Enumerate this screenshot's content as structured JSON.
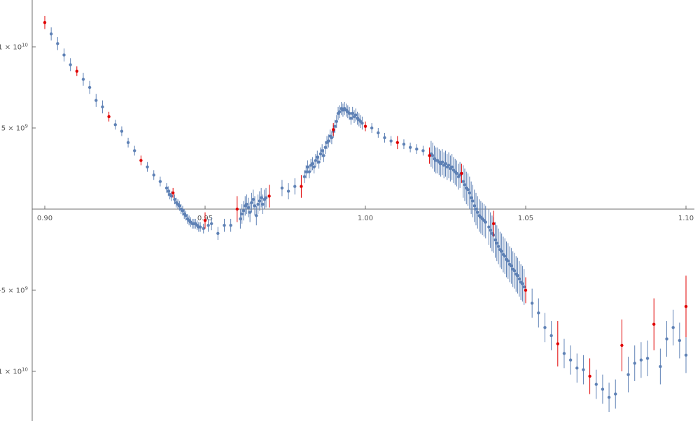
{
  "chart_data": {
    "type": "scatter",
    "title": "",
    "xlabel": "",
    "ylabel": "",
    "xlim": [
      0.9,
      1.1
    ],
    "ylim": [
      -13000000000.0,
      13000000000.0
    ],
    "grid": false,
    "x_ticks": [
      {
        "value": 0.9,
        "label": "0.90"
      },
      {
        "value": 0.95,
        "label": "0.95"
      },
      {
        "value": 1.0,
        "label": "1.00"
      },
      {
        "value": 1.05,
        "label": "1.05"
      },
      {
        "value": 1.1,
        "label": "1.10"
      }
    ],
    "y_ticks": [
      {
        "value": 10000000000.0,
        "label": "1 × 10",
        "exp": "10"
      },
      {
        "value": 5000000000.0,
        "label": "5 × 10",
        "exp": "9"
      },
      {
        "value": -5000000000.0,
        "label": "−5 × 10",
        "exp": "9"
      },
      {
        "value": -10000000000.0,
        "label": "−1 × 10",
        "exp": "10"
      }
    ],
    "colors": {
      "main": "#5e81b5",
      "highlight": "#e00000"
    },
    "series": [
      {
        "key": "main",
        "color": "#5e81b5",
        "points": [
          [
            0.902,
            10.8,
            0.4
          ],
          [
            0.904,
            10.2,
            0.4
          ],
          [
            0.906,
            9.5,
            0.4
          ],
          [
            0.908,
            8.9,
            0.4
          ],
          [
            0.912,
            8.0,
            0.4
          ],
          [
            0.914,
            7.5,
            0.4
          ],
          [
            0.916,
            6.7,
            0.4
          ],
          [
            0.918,
            6.3,
            0.4
          ],
          [
            0.922,
            5.2,
            0.3
          ],
          [
            0.924,
            4.8,
            0.3
          ],
          [
            0.926,
            4.1,
            0.3
          ],
          [
            0.928,
            3.6,
            0.3
          ],
          [
            0.932,
            2.6,
            0.3
          ],
          [
            0.934,
            2.1,
            0.3
          ],
          [
            0.936,
            1.7,
            0.3
          ],
          [
            0.938,
            1.3,
            0.3
          ],
          [
            0.9385,
            1.1,
            0.3
          ],
          [
            0.939,
            0.9,
            0.3
          ],
          [
            0.9395,
            0.8,
            0.3
          ],
          [
            0.9405,
            0.6,
            0.3
          ],
          [
            0.941,
            0.4,
            0.3
          ],
          [
            0.9415,
            0.3,
            0.3
          ],
          [
            0.942,
            0.2,
            0.3
          ],
          [
            0.9425,
            0.0,
            0.3
          ],
          [
            0.943,
            -0.1,
            0.3
          ],
          [
            0.9435,
            -0.3,
            0.3
          ],
          [
            0.944,
            -0.4,
            0.3
          ],
          [
            0.9445,
            -0.6,
            0.3
          ],
          [
            0.945,
            -0.7,
            0.3
          ],
          [
            0.9455,
            -0.8,
            0.3
          ],
          [
            0.946,
            -0.9,
            0.3
          ],
          [
            0.9465,
            -0.9,
            0.3
          ],
          [
            0.947,
            -0.9,
            0.3
          ],
          [
            0.9475,
            -1.0,
            0.3
          ],
          [
            0.948,
            -1.1,
            0.3
          ],
          [
            0.9485,
            -1.1,
            0.3
          ],
          [
            0.9495,
            -1.2,
            0.3
          ],
          [
            0.951,
            -1.0,
            0.4
          ],
          [
            0.952,
            -0.9,
            0.4
          ],
          [
            0.954,
            -1.5,
            0.4
          ],
          [
            0.956,
            -1.0,
            0.4
          ],
          [
            0.958,
            -1.0,
            0.4
          ],
          [
            0.961,
            -0.6,
            0.6
          ],
          [
            0.9615,
            -0.3,
            0.6
          ],
          [
            0.962,
            -0.1,
            0.6
          ],
          [
            0.9625,
            0.2,
            0.6
          ],
          [
            0.963,
            0.3,
            0.6
          ],
          [
            0.9635,
            0.1,
            0.6
          ],
          [
            0.964,
            -0.2,
            0.6
          ],
          [
            0.9645,
            0.4,
            0.6
          ],
          [
            0.965,
            0.6,
            0.6
          ],
          [
            0.9655,
            0.2,
            0.6
          ],
          [
            0.966,
            -0.4,
            0.6
          ],
          [
            0.9665,
            0.3,
            0.6
          ],
          [
            0.967,
            0.5,
            0.6
          ],
          [
            0.9675,
            0.7,
            0.6
          ],
          [
            0.968,
            0.3,
            0.6
          ],
          [
            0.9685,
            0.6,
            0.6
          ],
          [
            0.969,
            0.7,
            0.6
          ],
          [
            0.974,
            1.3,
            0.5
          ],
          [
            0.976,
            1.1,
            0.5
          ],
          [
            0.978,
            1.4,
            0.5
          ],
          [
            0.981,
            2.0,
            0.4
          ],
          [
            0.9815,
            2.3,
            0.4
          ],
          [
            0.982,
            2.6,
            0.4
          ],
          [
            0.9825,
            2.3,
            0.4
          ],
          [
            0.983,
            2.7,
            0.4
          ],
          [
            0.9835,
            2.8,
            0.4
          ],
          [
            0.984,
            2.6,
            0.4
          ],
          [
            0.9845,
            3.0,
            0.4
          ],
          [
            0.985,
            3.2,
            0.4
          ],
          [
            0.9855,
            2.9,
            0.4
          ],
          [
            0.986,
            3.4,
            0.4
          ],
          [
            0.9865,
            3.6,
            0.4
          ],
          [
            0.987,
            3.3,
            0.4
          ],
          [
            0.9875,
            3.8,
            0.4
          ],
          [
            0.988,
            4.1,
            0.4
          ],
          [
            0.9885,
            4.2,
            0.4
          ],
          [
            0.989,
            4.5,
            0.4
          ],
          [
            0.9895,
            4.4,
            0.4
          ],
          [
            0.99,
            4.8,
            0.4
          ],
          [
            0.9905,
            5.1,
            0.4
          ],
          [
            0.991,
            5.4,
            0.4
          ],
          [
            0.9915,
            5.9,
            0.4
          ],
          [
            0.992,
            6.0,
            0.4
          ],
          [
            0.9925,
            6.2,
            0.4
          ],
          [
            0.993,
            6.1,
            0.4
          ],
          [
            0.9935,
            6.2,
            0.4
          ],
          [
            0.994,
            6.1,
            0.4
          ],
          [
            0.9945,
            6.0,
            0.4
          ],
          [
            0.995,
            5.9,
            0.4
          ],
          [
            0.9955,
            5.6,
            0.4
          ],
          [
            0.996,
            5.9,
            0.4
          ],
          [
            0.9965,
            5.7,
            0.4
          ],
          [
            0.997,
            5.8,
            0.4
          ],
          [
            0.9975,
            5.6,
            0.4
          ],
          [
            0.998,
            5.5,
            0.4
          ],
          [
            0.9985,
            5.4,
            0.4
          ],
          [
            0.999,
            5.3,
            0.4
          ],
          [
            1.002,
            5.0,
            0.3
          ],
          [
            1.004,
            4.7,
            0.3
          ],
          [
            1.006,
            4.4,
            0.3
          ],
          [
            1.008,
            4.2,
            0.3
          ],
          [
            1.012,
            4.0,
            0.3
          ],
          [
            1.014,
            3.8,
            0.3
          ],
          [
            1.016,
            3.7,
            0.3
          ],
          [
            1.018,
            3.6,
            0.3
          ],
          [
            1.0205,
            3.4,
            0.8
          ],
          [
            1.021,
            3.3,
            0.8
          ],
          [
            1.0215,
            3.1,
            0.8
          ],
          [
            1.022,
            3.0,
            0.8
          ],
          [
            1.0225,
            3.0,
            0.8
          ],
          [
            1.023,
            2.9,
            0.8
          ],
          [
            1.0235,
            2.8,
            0.8
          ],
          [
            1.024,
            2.9,
            0.8
          ],
          [
            1.0245,
            2.7,
            0.8
          ],
          [
            1.025,
            2.8,
            0.8
          ],
          [
            1.0255,
            2.6,
            0.8
          ],
          [
            1.026,
            2.7,
            0.8
          ],
          [
            1.0265,
            2.5,
            0.8
          ],
          [
            1.027,
            2.6,
            0.8
          ],
          [
            1.0275,
            2.4,
            0.8
          ],
          [
            1.028,
            2.3,
            0.8
          ],
          [
            1.0285,
            2.2,
            0.8
          ],
          [
            1.029,
            2.0,
            0.8
          ],
          [
            1.0295,
            2.1,
            0.8
          ],
          [
            1.0305,
            1.7,
            1.0
          ],
          [
            1.031,
            1.5,
            1.0
          ],
          [
            1.0315,
            1.3,
            1.0
          ],
          [
            1.032,
            1.2,
            1.0
          ],
          [
            1.0325,
            1.0,
            1.0
          ],
          [
            1.033,
            0.7,
            1.0
          ],
          [
            1.0335,
            0.5,
            1.0
          ],
          [
            1.034,
            0.2,
            1.0
          ],
          [
            1.0345,
            0.0,
            1.0
          ],
          [
            1.035,
            -0.2,
            1.0
          ],
          [
            1.0355,
            -0.4,
            1.0
          ],
          [
            1.036,
            -0.5,
            1.0
          ],
          [
            1.0365,
            -0.6,
            1.0
          ],
          [
            1.037,
            -0.7,
            1.0
          ],
          [
            1.0375,
            -0.8,
            1.0
          ],
          [
            1.0385,
            -1.1,
            1.1
          ],
          [
            1.039,
            -1.3,
            1.1
          ],
          [
            1.0395,
            -1.5,
            1.1
          ],
          [
            1.04,
            -1.6,
            1.1
          ],
          [
            1.0405,
            -1.9,
            1.1
          ],
          [
            1.041,
            -2.1,
            1.1
          ],
          [
            1.0415,
            -2.3,
            1.1
          ],
          [
            1.042,
            -2.5,
            1.1
          ],
          [
            1.0425,
            -2.6,
            1.1
          ],
          [
            1.043,
            -2.8,
            1.1
          ],
          [
            1.0435,
            -2.9,
            1.1
          ],
          [
            1.044,
            -3.1,
            1.1
          ],
          [
            1.0445,
            -3.2,
            1.1
          ],
          [
            1.045,
            -3.4,
            1.1
          ],
          [
            1.0455,
            -3.5,
            1.1
          ],
          [
            1.046,
            -3.7,
            1.1
          ],
          [
            1.0465,
            -3.8,
            1.1
          ],
          [
            1.047,
            -4.0,
            1.1
          ],
          [
            1.0475,
            -4.1,
            1.1
          ],
          [
            1.048,
            -4.3,
            1.1
          ],
          [
            1.0485,
            -4.5,
            1.1
          ],
          [
            1.049,
            -4.6,
            1.1
          ],
          [
            1.0495,
            -4.8,
            1.1
          ],
          [
            1.052,
            -5.8,
            0.9
          ],
          [
            1.054,
            -6.4,
            0.9
          ],
          [
            1.056,
            -7.3,
            0.9
          ],
          [
            1.058,
            -7.8,
            0.9
          ],
          [
            1.062,
            -8.9,
            0.9
          ],
          [
            1.064,
            -9.3,
            0.9
          ],
          [
            1.066,
            -9.8,
            0.9
          ],
          [
            1.068,
            -9.9,
            0.9
          ],
          [
            1.072,
            -10.8,
            0.9
          ],
          [
            1.074,
            -11.1,
            0.9
          ],
          [
            1.076,
            -11.6,
            0.9
          ],
          [
            1.078,
            -11.4,
            0.9
          ],
          [
            1.082,
            -10.2,
            1.1
          ],
          [
            1.084,
            -9.5,
            1.1
          ],
          [
            1.086,
            -9.3,
            1.1
          ],
          [
            1.088,
            -9.2,
            1.1
          ],
          [
            1.092,
            -9.7,
            1.1
          ],
          [
            1.094,
            -8.0,
            1.1
          ],
          [
            1.096,
            -7.3,
            1.1
          ],
          [
            1.098,
            -8.1,
            1.1
          ]
        ]
      },
      {
        "key": "highlight",
        "color": "#e00000",
        "points": [
          [
            0.9,
            11.5,
            0.4
          ],
          [
            0.91,
            8.5,
            0.3
          ],
          [
            0.92,
            5.7,
            0.3
          ],
          [
            0.93,
            3.0,
            0.3
          ],
          [
            0.94,
            1.0,
            0.3
          ],
          [
            0.95,
            -0.7,
            0.5
          ],
          [
            0.96,
            0.0,
            0.8
          ],
          [
            0.97,
            0.8,
            0.7
          ],
          [
            0.98,
            1.4,
            0.7
          ],
          [
            0.99,
            4.9,
            0.4
          ],
          [
            1.0,
            5.1,
            0.3
          ],
          [
            1.01,
            4.1,
            0.4
          ],
          [
            1.02,
            3.3,
            0.5
          ],
          [
            1.03,
            2.2,
            0.6
          ],
          [
            1.04,
            -0.9,
            0.8
          ],
          [
            1.05,
            -5.0,
            0.8
          ],
          [
            1.06,
            -8.3,
            1.4
          ],
          [
            1.07,
            -10.3,
            1.1
          ],
          [
            1.08,
            -8.4,
            1.6
          ],
          [
            1.09,
            -7.1,
            1.6
          ],
          [
            1.1,
            -6.0,
            1.9
          ]
        ]
      }
    ],
    "extra_main_points": [
      [
        1.1,
        -9.0,
        1.1
      ]
    ]
  }
}
